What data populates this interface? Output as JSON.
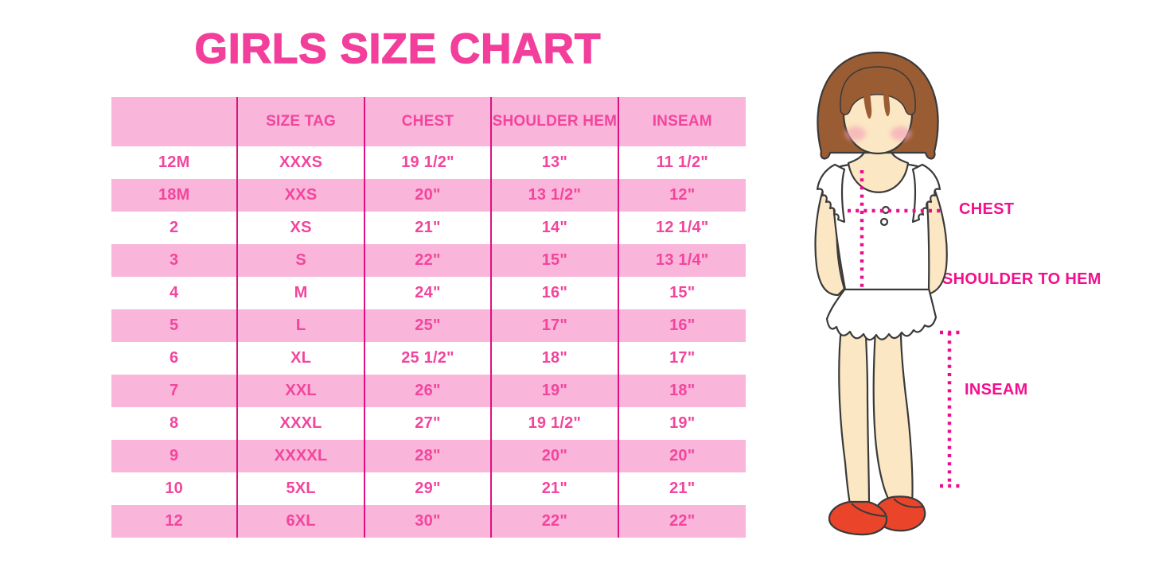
{
  "title": "GIRLS SIZE CHART",
  "chart_data": {
    "type": "table",
    "title": "GIRLS SIZE CHART",
    "columns": [
      "",
      "SIZE TAG",
      "CHEST",
      "SHOULDER HEM",
      "INSEAM"
    ],
    "rows": [
      [
        "12M",
        "XXXS",
        "19 1/2\"",
        "13\"",
        "11 1/2\""
      ],
      [
        "18M",
        "XXS",
        "20\"",
        "13 1/2\"",
        "12\""
      ],
      [
        "2",
        "XS",
        "21\"",
        "14\"",
        "12 1/4\""
      ],
      [
        "3",
        "S",
        "22\"",
        "15\"",
        "13 1/4\""
      ],
      [
        "4",
        "M",
        "24\"",
        "16\"",
        "15\""
      ],
      [
        "5",
        "L",
        "25\"",
        "17\"",
        "16\""
      ],
      [
        "6",
        "XL",
        "25 1/2\"",
        "18\"",
        "17\""
      ],
      [
        "7",
        "XXL",
        "26\"",
        "19\"",
        "18\""
      ],
      [
        "8",
        "XXXL",
        "27\"",
        "19 1/2\"",
        "19\""
      ],
      [
        "9",
        "XXXXL",
        "28\"",
        "20\"",
        "20\""
      ],
      [
        "10",
        "5XL",
        "29\"",
        "21\"",
        "21\""
      ],
      [
        "12",
        "6XL",
        "30\"",
        "22\"",
        "22\""
      ]
    ],
    "annotations": [
      "CHEST",
      "SHOULDER TO HEM",
      "INSEAM"
    ],
    "layout": {
      "header_fill": "pink",
      "row_striping": "white/pink alternating",
      "grid": "vertical magenta separators only"
    }
  },
  "diagram": {
    "labels": {
      "chest": "CHEST",
      "shoulder_to_hem": "SHOULDER TO HEM",
      "inseam": "INSEAM"
    }
  },
  "colors": {
    "title_pink": "#F23F9B",
    "row_band_pink": "#FAB5DA",
    "cell_text_pink": "#F2459D",
    "grid_line_magenta": "#DF1082",
    "dotted_line_magenta": "#EC0E90",
    "label_magenta": "#F2108E",
    "hair_brown": "#9A5C32",
    "skin_tone": "#FBE7C3",
    "shoe_red": "#EA452B"
  }
}
